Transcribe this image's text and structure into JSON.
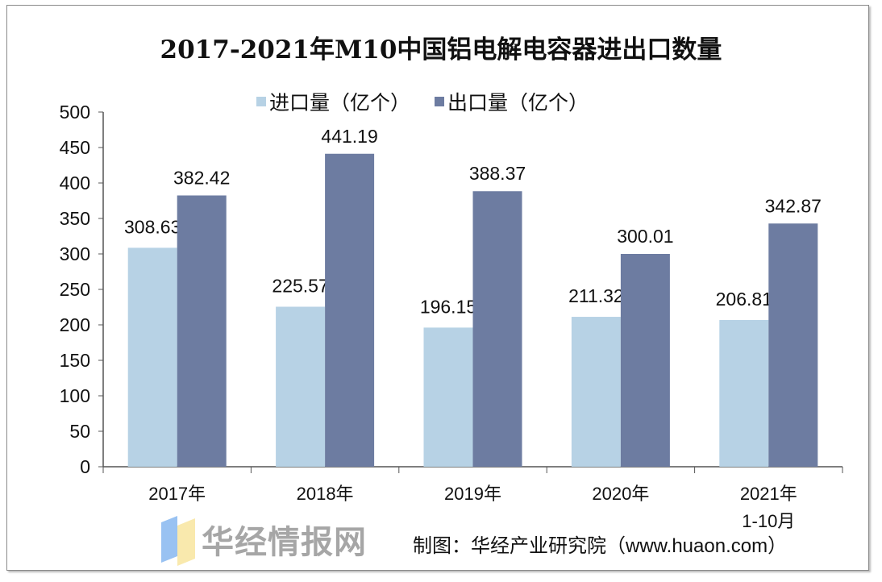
{
  "chart_data": {
    "type": "bar",
    "title": "2017-2021年M10中国铝电解电容器进出口数量",
    "categories": [
      [
        "2017年"
      ],
      [
        "2018年"
      ],
      [
        "2019年"
      ],
      [
        "2020年"
      ],
      [
        "2021年",
        "1-10月"
      ]
    ],
    "series": [
      {
        "name": "进口量（亿个）",
        "values": [
          308.63,
          225.57,
          196.15,
          211.32,
          206.81
        ],
        "labels": [
          "308.63",
          "225.57",
          "196.15",
          "211.32",
          "206.81"
        ],
        "color": "#b7d2e5"
      },
      {
        "name": "出口量（亿个）",
        "values": [
          382.42,
          441.19,
          388.37,
          300.01,
          342.87
        ],
        "labels": [
          "382.42",
          "441.19",
          "388.37",
          "300.01",
          "342.87"
        ],
        "color": "#6d7ca1"
      }
    ],
    "yticks": [
      "0",
      "50",
      "100",
      "150",
      "200",
      "250",
      "300",
      "350",
      "400",
      "450",
      "500"
    ],
    "ylim": [
      0,
      500
    ],
    "xlabel": "",
    "ylabel": "",
    "grid": false,
    "legend": "top"
  },
  "source": "制图：华经产业研究院（www.huaon.com）",
  "watermark": "华经情报网"
}
